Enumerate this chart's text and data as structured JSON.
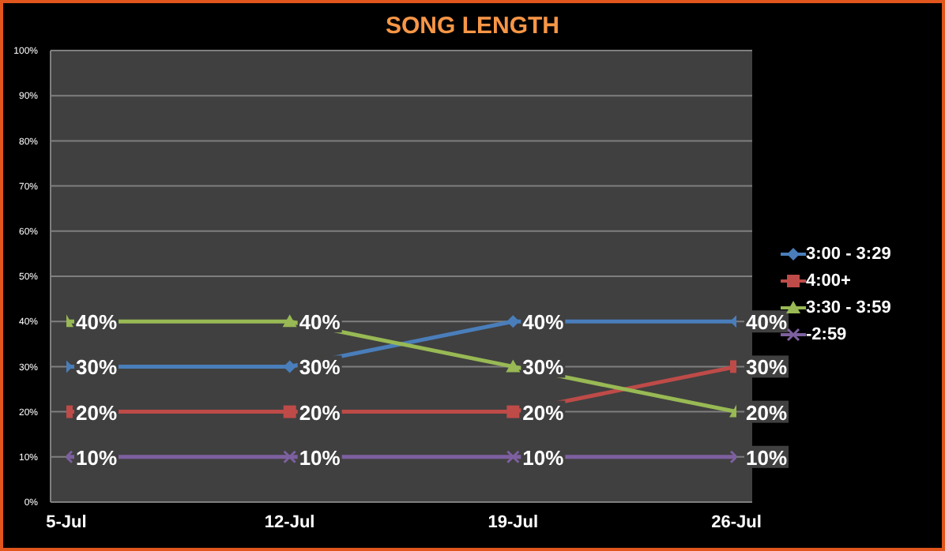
{
  "chart_data": {
    "type": "line",
    "title": "SONG LENGTH",
    "categories": [
      "5-Jul",
      "12-Jul",
      "19-Jul",
      "26-Jul"
    ],
    "series": [
      {
        "name": "3:00 - 3:29",
        "color": "#4a7ebb",
        "marker": "diamond",
        "values": [
          30,
          30,
          40,
          40
        ],
        "value_labels": [
          "30%",
          "30%",
          "40%",
          "40%"
        ]
      },
      {
        "name": "4:00+",
        "color": "#be4b48",
        "marker": "square",
        "values": [
          20,
          20,
          20,
          30
        ],
        "value_labels": [
          "20%",
          "20%",
          "20%",
          "30%"
        ]
      },
      {
        "name": "3:30 - 3:59",
        "color": "#98b954",
        "marker": "triangle",
        "values": [
          40,
          40,
          30,
          20
        ],
        "value_labels": [
          "40%",
          "40%",
          "30%",
          "20%"
        ]
      },
      {
        "name": "-2:59",
        "color": "#7d60a0",
        "marker": "cross",
        "values": [
          10,
          10,
          10,
          10
        ],
        "value_labels": [
          "10%",
          "10%",
          "10%",
          "10%"
        ]
      }
    ],
    "ylim": [
      0,
      100
    ],
    "yticks": [
      {
        "value": 0,
        "label": "0%"
      },
      {
        "value": 10,
        "label": "10%"
      },
      {
        "value": 20,
        "label": "20%"
      },
      {
        "value": 30,
        "label": "30%"
      },
      {
        "value": 40,
        "label": "40%"
      },
      {
        "value": 50,
        "label": "50%"
      },
      {
        "value": 60,
        "label": "60%"
      },
      {
        "value": 70,
        "label": "70%"
      },
      {
        "value": 80,
        "label": "80%"
      },
      {
        "value": 90,
        "label": "90%"
      },
      {
        "value": 100,
        "label": "100%"
      }
    ],
    "grid": "y",
    "legend": "right",
    "line_style": "solid"
  }
}
